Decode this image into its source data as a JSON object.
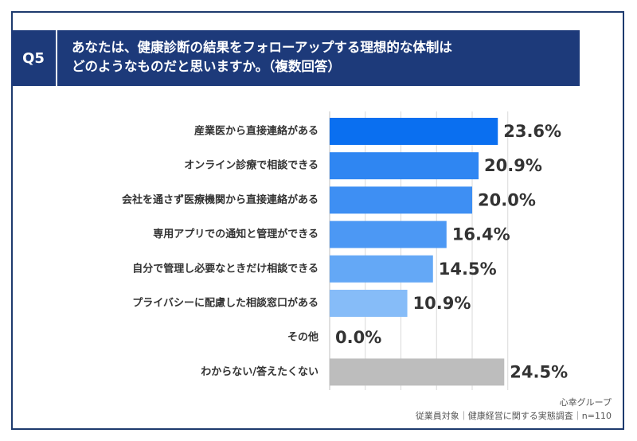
{
  "question": {
    "label": "Q5",
    "title_line1": "あなたは、健康診断の結果をフォローアップする理想的な体制は",
    "title_line2": "どのようなものだと思いますか。（複数回答）"
  },
  "chart_data": {
    "type": "bar",
    "orientation": "horizontal",
    "categories": [
      "産業医から直接連絡がある",
      "オンライン診療で相談できる",
      "会社を通さず医療機関から直接連絡がある",
      "専用アプリでの通知と管理ができる",
      "自分で管理し必要なときだけ相談できる",
      "プライバシーに配慮した相談窓口がある",
      "その他",
      "わからない/答えたくない"
    ],
    "values": [
      23.6,
      20.9,
      20.0,
      16.4,
      14.5,
      10.9,
      0.0,
      24.5
    ],
    "value_labels": [
      "23.6%",
      "20.9%",
      "20.0%",
      "16.4%",
      "14.5%",
      "10.9%",
      "0.0%",
      "24.5%"
    ],
    "colors": [
      "#0a6ff0",
      "#2f86f2",
      "#3e8ff3",
      "#4c98f4",
      "#64a8f6",
      "#86bcf8",
      "#86bcf8",
      "#bdbdbd"
    ],
    "xlim": [
      0,
      25
    ],
    "grid": true
  },
  "footer": {
    "brand": "心幸グループ",
    "survey": "従業員対象｜健康経営に関する実態調査｜n=110"
  }
}
